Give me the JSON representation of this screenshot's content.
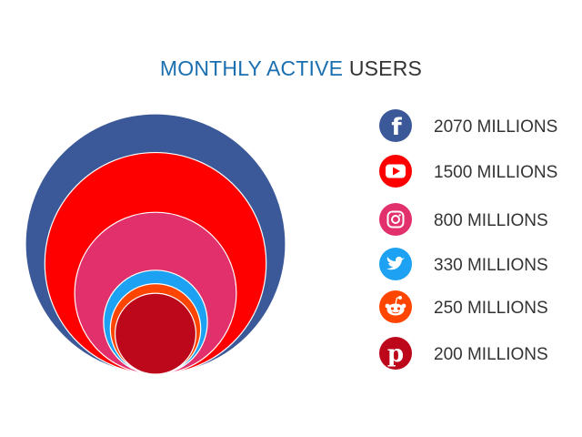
{
  "title": {
    "part1": "MONTHLY ACTIVE",
    "part2": "USERS"
  },
  "chart_data": {
    "type": "nested-bubble",
    "unit": "MILLIONS",
    "series": [
      {
        "name": "Facebook",
        "value": 2070,
        "label": "2070 MILLIONS",
        "color": "#3b5998",
        "icon": "facebook-icon"
      },
      {
        "name": "YouTube",
        "value": 1500,
        "label": "1500 MILLIONS",
        "color": "#ff0000",
        "icon": "youtube-icon"
      },
      {
        "name": "Instagram",
        "value": 800,
        "label": "800 MILLIONS",
        "color": "#e1306c",
        "icon": "instagram-icon"
      },
      {
        "name": "Twitter",
        "value": 330,
        "label": "330 MILLIONS",
        "color": "#1da1f2",
        "icon": "twitter-icon"
      },
      {
        "name": "Reddit",
        "value": 250,
        "label": "250 MILLIONS",
        "color": "#ff4500",
        "icon": "reddit-icon"
      },
      {
        "name": "Pinterest",
        "value": 200,
        "label": "200 MILLIONS",
        "color": "#bd081c",
        "icon": "pinterest-icon"
      }
    ]
  }
}
